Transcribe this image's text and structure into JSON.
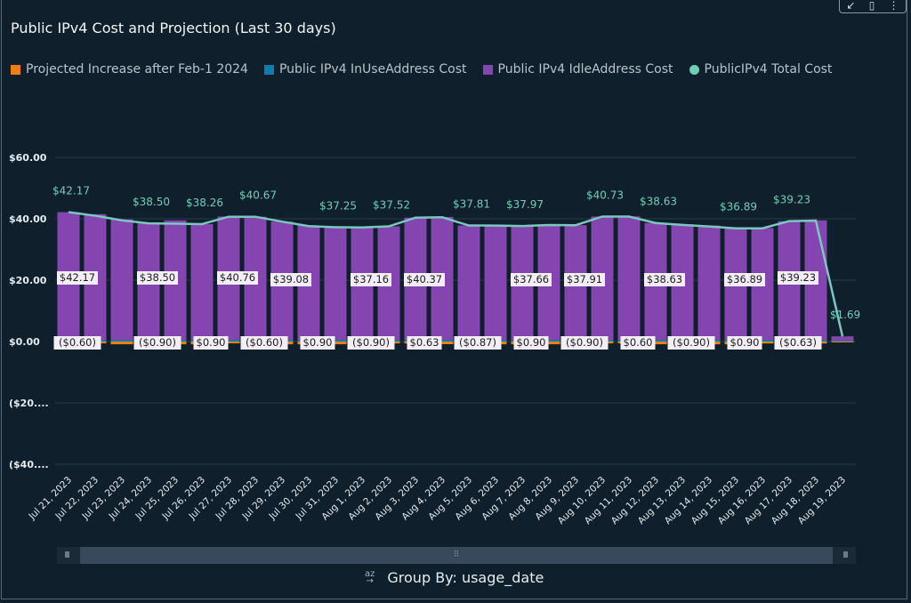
{
  "title": "Public IPv4 Cost and Projection (Last 30 days)",
  "toolbar": {
    "expand_icon": "↙",
    "pin_icon": "▯",
    "menu_icon": "⋮"
  },
  "group_by": "Group By: usage_date",
  "sort_icon": "az",
  "colors": {
    "projected": "#f07f13",
    "in_use": "#0f7cad",
    "idle": "#8445b0",
    "total": "#6fcfb6",
    "background": "#0f1f2c"
  },
  "chart_data": {
    "type": "bar",
    "title": "Public IPv4 Cost and Projection (Last 30 days)",
    "legend_position": "top-left",
    "legend": [
      "Projected Increase after Feb-1 2024",
      "Public IPv4 InUseAddress Cost",
      "Public IPv4 IdleAddress Cost",
      "PublicIPv4 Total Cost"
    ],
    "ylim": [
      -40,
      60
    ],
    "yticks": [
      60,
      40,
      20,
      0,
      -20,
      -40
    ],
    "ytick_labels": [
      "$60.00",
      "$40.00",
      "$20.00",
      "$0.00",
      "($20....",
      "($40...."
    ],
    "grid": true,
    "categories": [
      "Jul 21, 2023",
      "Jul 22, 2023",
      "Jul 23, 2023",
      "Jul 24, 2023",
      "Jul 25, 2023",
      "Jul 26, 2023",
      "Jul 27, 2023",
      "Jul 28, 2023",
      "Jul 29, 2023",
      "Jul 30, 2023",
      "Jul 31, 2023",
      "Aug 1, 2023",
      "Aug 2, 2023",
      "Aug 3, 2023",
      "Aug 4, 2023",
      "Aug 5, 2023",
      "Aug 6, 2023",
      "Aug 7, 2023",
      "Aug 8, 2023",
      "Aug 9, 2023",
      "Aug 10, 2023",
      "Aug 11, 2023",
      "Aug 12, 2023",
      "Aug 13, 2023",
      "Aug 14, 2023",
      "Aug 15, 2023",
      "Aug 16, 2023",
      "Aug 17, 2023",
      "Aug 18, 2023",
      "Aug 19, 2023"
    ],
    "series": [
      {
        "name": "Projected Increase after Feb-1 2024",
        "type": "bar",
        "values": [
          -0.6,
          -0.6,
          -0.9,
          -0.9,
          -0.9,
          -0.9,
          -0.6,
          -0.6,
          -0.9,
          -0.9,
          -0.9,
          -0.9,
          -0.63,
          -0.63,
          -0.87,
          -0.87,
          -0.9,
          -0.9,
          -0.9,
          -0.9,
          -0.6,
          -0.6,
          -0.9,
          -0.9,
          -0.9,
          -0.9,
          -0.63,
          -0.63,
          -0.63,
          0
        ]
      },
      {
        "name": "Public IPv4 InUseAddress Cost",
        "type": "bar",
        "values": [
          0.6,
          0.6,
          0.9,
          0.9,
          0.9,
          0.9,
          0.6,
          0.6,
          0.9,
          0.9,
          0.9,
          0.9,
          0.63,
          0.63,
          0.87,
          0.87,
          0.9,
          0.9,
          0.9,
          0.9,
          0.6,
          0.6,
          0.9,
          0.9,
          0.9,
          0.9,
          0.63,
          0.63,
          0.63,
          0
        ]
      },
      {
        "name": "Public IPv4 IdleAddress Cost",
        "type": "bar",
        "values": [
          42.17,
          41.5,
          39.8,
          38.5,
          39.5,
          38.26,
          40.76,
          40.67,
          39.08,
          37.8,
          37.25,
          37.16,
          37.52,
          40.37,
          40.6,
          37.81,
          38.0,
          37.66,
          37.97,
          37.91,
          40.73,
          40.8,
          38.63,
          38.2,
          37.8,
          36.89,
          37.0,
          39.23,
          39.5,
          1.69
        ]
      },
      {
        "name": "PublicIPv4 Total Cost",
        "type": "line",
        "values": [
          42.17,
          41.0,
          39.5,
          38.5,
          38.4,
          38.26,
          40.67,
          40.67,
          39.08,
          37.6,
          37.25,
          37.16,
          37.52,
          40.37,
          40.5,
          37.81,
          37.8,
          37.66,
          37.97,
          37.91,
          40.73,
          40.73,
          38.63,
          38.0,
          37.5,
          36.89,
          36.9,
          39.23,
          39.4,
          1.69
        ]
      }
    ],
    "total_labels": [
      [
        0,
        "$42.17"
      ],
      [
        3,
        "$38.50"
      ],
      [
        5,
        "$38.26"
      ],
      [
        7,
        "$40.67"
      ],
      [
        10,
        "$37.25"
      ],
      [
        12,
        "$37.52"
      ],
      [
        15,
        "$37.81"
      ],
      [
        17,
        "$37.97"
      ],
      [
        20,
        "$40.73"
      ],
      [
        22,
        "$38.63"
      ],
      [
        25,
        "$36.89"
      ],
      [
        27,
        "$39.23"
      ],
      [
        29,
        "$1.69"
      ]
    ],
    "idle_labels": [
      [
        0,
        "$42.17"
      ],
      [
        3,
        "$38.50"
      ],
      [
        6,
        "$40.76"
      ],
      [
        8,
        "$39.08"
      ],
      [
        11,
        "$37.16"
      ],
      [
        13,
        "$40.37"
      ],
      [
        17,
        "$37.66"
      ],
      [
        19,
        "$37.91"
      ],
      [
        22,
        "$38.63"
      ],
      [
        25,
        "$36.89"
      ],
      [
        27,
        "$39.23"
      ]
    ],
    "small_labels": [
      [
        0,
        "($0.60)"
      ],
      [
        3,
        "($0.90)"
      ],
      [
        5,
        "$0.90"
      ],
      [
        7,
        "($0.60)"
      ],
      [
        9,
        "$0.90"
      ],
      [
        11,
        "($0.90)"
      ],
      [
        13,
        "$0.63"
      ],
      [
        15,
        "($0.87)"
      ],
      [
        17,
        "$0.90"
      ],
      [
        19,
        "($0.90)"
      ],
      [
        21,
        "$0.60"
      ],
      [
        23,
        "($0.90)"
      ],
      [
        25,
        "$0.90"
      ],
      [
        27,
        "($0.63)"
      ]
    ]
  }
}
